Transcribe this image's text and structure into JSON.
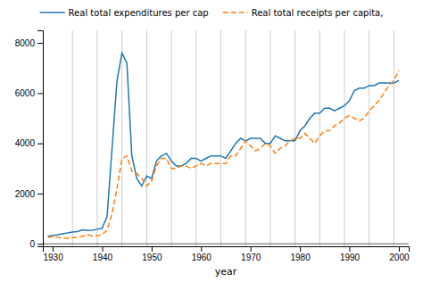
{
  "chart_data": {
    "type": "line",
    "xlabel": "year",
    "x": [
      1929,
      1930,
      1931,
      1932,
      1933,
      1934,
      1935,
      1936,
      1937,
      1938,
      1939,
      1940,
      1941,
      1942,
      1943,
      1944,
      1945,
      1946,
      1947,
      1948,
      1949,
      1950,
      1951,
      1952,
      1953,
      1954,
      1955,
      1956,
      1957,
      1958,
      1959,
      1960,
      1961,
      1962,
      1963,
      1964,
      1965,
      1966,
      1967,
      1968,
      1969,
      1970,
      1971,
      1972,
      1973,
      1974,
      1975,
      1976,
      1977,
      1978,
      1979,
      1980,
      1981,
      1982,
      1983,
      1984,
      1985,
      1986,
      1987,
      1988,
      1989,
      1990,
      1991,
      1992,
      1993,
      1994,
      1995,
      1996,
      1997,
      1998,
      1999,
      2000
    ],
    "series": [
      {
        "name": "Real total expenditures per cap",
        "line_style": "solid",
        "values": [
          300,
          330,
          360,
          400,
          430,
          470,
          490,
          560,
          530,
          540,
          580,
          620,
          1100,
          3800,
          6500,
          7600,
          7200,
          3500,
          2600,
          2300,
          2700,
          2600,
          3300,
          3500,
          3600,
          3300,
          3100,
          3100,
          3200,
          3400,
          3400,
          3300,
          3400,
          3500,
          3500,
          3500,
          3400,
          3700,
          4000,
          4200,
          4100,
          4200,
          4200,
          4200,
          4000,
          4000,
          4300,
          4200,
          4100,
          4100,
          4100,
          4500,
          4700,
          5000,
          5200,
          5200,
          5400,
          5400,
          5300,
          5400,
          5500,
          5700,
          6100,
          6200,
          6200,
          6300,
          6300,
          6400,
          6400,
          6400,
          6400,
          6500
        ]
      },
      {
        "name": "Real total receipts per capita,",
        "line_style": "dashed",
        "values": [
          260,
          280,
          260,
          230,
          220,
          250,
          270,
          300,
          360,
          310,
          330,
          360,
          550,
          1200,
          2200,
          3400,
          3500,
          2900,
          2800,
          2600,
          2300,
          2500,
          3100,
          3400,
          3400,
          3000,
          3000,
          3100,
          3100,
          3000,
          3100,
          3200,
          3100,
          3200,
          3200,
          3200,
          3200,
          3500,
          3500,
          3800,
          4100,
          3900,
          3700,
          3800,
          4000,
          3900,
          3600,
          3800,
          3900,
          4100,
          4200,
          4200,
          4400,
          4200,
          4000,
          4300,
          4500,
          4500,
          4700,
          4800,
          5000,
          5100,
          5000,
          4900,
          5000,
          5300,
          5500,
          5700,
          6000,
          6300,
          6500,
          6900
        ]
      }
    ],
    "xlim": [
      1928,
      2002
    ],
    "ylim": [
      -100,
      8500
    ],
    "xticks": [
      1930,
      1940,
      1950,
      1960,
      1970,
      1980,
      1990,
      2000
    ],
    "yticks": [
      0,
      2000,
      4000,
      6000,
      8000
    ],
    "vlines": [
      1934,
      1939,
      1944,
      1949,
      1954,
      1959,
      1964,
      1969,
      1974,
      1979,
      1984,
      1989,
      1994,
      1999
    ],
    "hlines": [
      0
    ],
    "legend": "top"
  }
}
